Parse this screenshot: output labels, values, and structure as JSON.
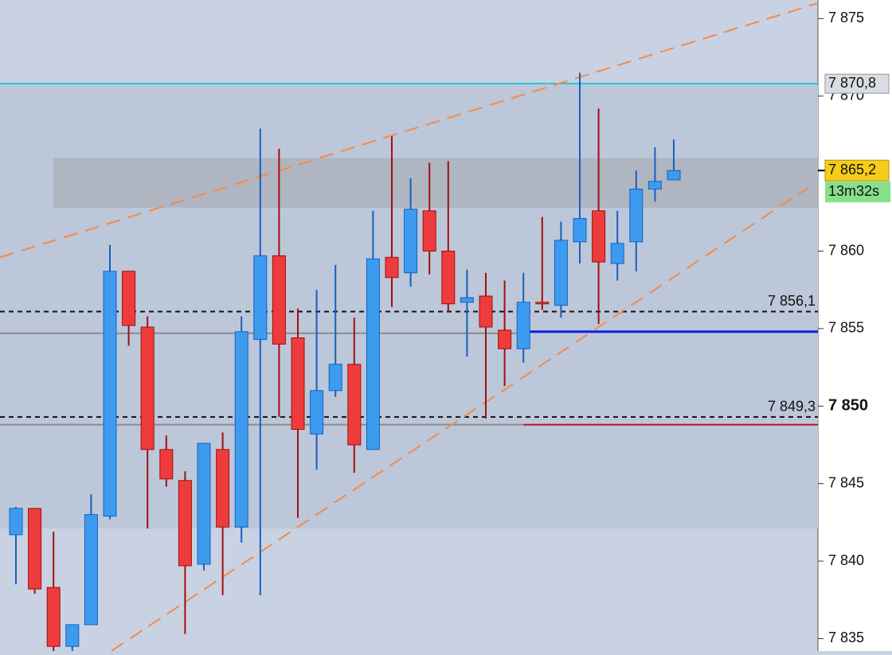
{
  "chart_data": {
    "type": "candlestick",
    "open": [
      7841.7,
      7843.4,
      7838.3,
      7834.5,
      7835.9,
      7842.9,
      7858.7,
      7855.1,
      7847.2,
      7845.2,
      7839.8,
      7847.2,
      7842.2,
      7854.3,
      7859.7,
      7854.4,
      7848.2,
      7851.0,
      7852.7,
      7847.2,
      7859.6,
      7858.6,
      7862.6,
      7860.0,
      7856.7,
      7857.1,
      7854.9,
      7853.7,
      7856.7,
      7856.5,
      7860.6,
      7862.6,
      7859.2,
      7860.6,
      7864.0,
      7864.6
    ],
    "high": [
      7843.5,
      7843.4,
      7841.9,
      7835.9,
      7844.3,
      7860.4,
      7858.7,
      7855.8,
      7848.1,
      7845.8,
      7847.6,
      7848.3,
      7855.8,
      7867.9,
      7866.6,
      7856.3,
      7857.5,
      7859.1,
      7855.7,
      7862.6,
      7867.4,
      7864.7,
      7865.7,
      7865.8,
      7858.8,
      7858.6,
      7858.1,
      7858.6,
      7862.2,
      7861.9,
      7871.5,
      7869.2,
      7862.6,
      7865.2,
      7866.7,
      7867.2
    ],
    "low": [
      7838.5,
      7837.9,
      7834.2,
      7834.2,
      7835.9,
      7842.7,
      7853.9,
      7842.1,
      7844.8,
      7835.3,
      7839.4,
      7837.8,
      7841.2,
      7837.8,
      7849.3,
      7842.8,
      7845.9,
      7850.6,
      7845.7,
      7847.2,
      7856.4,
      7857.7,
      7858.5,
      7856.1,
      7853.2,
      7849.2,
      7851.3,
      7852.8,
      7856.2,
      7855.7,
      7859.2,
      7855.3,
      7858.1,
      7858.7,
      7863.2,
      7864.6
    ],
    "close": [
      7843.4,
      7838.2,
      7834.5,
      7835.9,
      7843.0,
      7858.7,
      7855.2,
      7847.2,
      7845.3,
      7839.7,
      7847.6,
      7842.2,
      7854.8,
      7859.7,
      7854.0,
      7848.5,
      7851.0,
      7852.7,
      7847.5,
      7859.5,
      7858.3,
      7862.7,
      7860.0,
      7856.6,
      7857.0,
      7855.1,
      7853.7,
      7856.7,
      7856.6,
      7860.7,
      7862.1,
      7859.3,
      7860.5,
      7864.0,
      7864.5,
      7865.2
    ],
    "up_color": "#3d9bef",
    "down_color": "#ee3b3b",
    "ylim": [
      7834.2,
      7876.2
    ],
    "yticks": [
      {
        "value": 7835,
        "label": "7 835"
      },
      {
        "value": 7840,
        "label": "7 840"
      },
      {
        "value": 7845,
        "label": "7 845"
      },
      {
        "value": 7850,
        "label": "7 850"
      },
      {
        "value": 7855,
        "label": "7 855"
      },
      {
        "value": 7860,
        "label": "7 860"
      },
      {
        "value": 7870,
        "label": "7 870"
      },
      {
        "value": 7875,
        "label": "7 875"
      }
    ],
    "bold_tick": 7850,
    "zones": [
      {
        "low": 7842.1,
        "high": 7870.7,
        "color": "#bcc7d9"
      },
      {
        "low": 7862.8,
        "high": 7866.0,
        "color": "#afb5c1",
        "from": 2
      }
    ],
    "trendlines": [
      {
        "from": [
          -0.85,
          7859.6
        ],
        "to": [
          42.67,
          7876.0
        ],
        "color": "#f58a4a"
      },
      {
        "from": [
          5.08,
          7834.2
        ],
        "to": [
          42.16,
          7864.1
        ],
        "color": "#f58a4a"
      }
    ],
    "levels": [
      {
        "value": 7854.7,
        "color": "#8c8c8c",
        "to": 27
      },
      {
        "value": 7848.8,
        "color": "#8c8c8c",
        "to": 27
      },
      {
        "value": 7854.8,
        "color": "#0a1fe0",
        "from": 27,
        "width": 3
      },
      {
        "value": 7848.8,
        "color": "#b01a1a",
        "from": 27
      },
      {
        "value": 7856.1,
        "label": "7 856,1",
        "color": "#111111",
        "dashed": true
      },
      {
        "value": 7849.3,
        "label": "7 849,3",
        "color": "#111111",
        "dashed": true
      },
      {
        "value": 7870.8,
        "axis_label": "7 870,8",
        "color": "#22c4cc"
      }
    ],
    "last_price": {
      "value": 7865.2,
      "label": "7 865,2",
      "timer": "13m32s"
    }
  }
}
